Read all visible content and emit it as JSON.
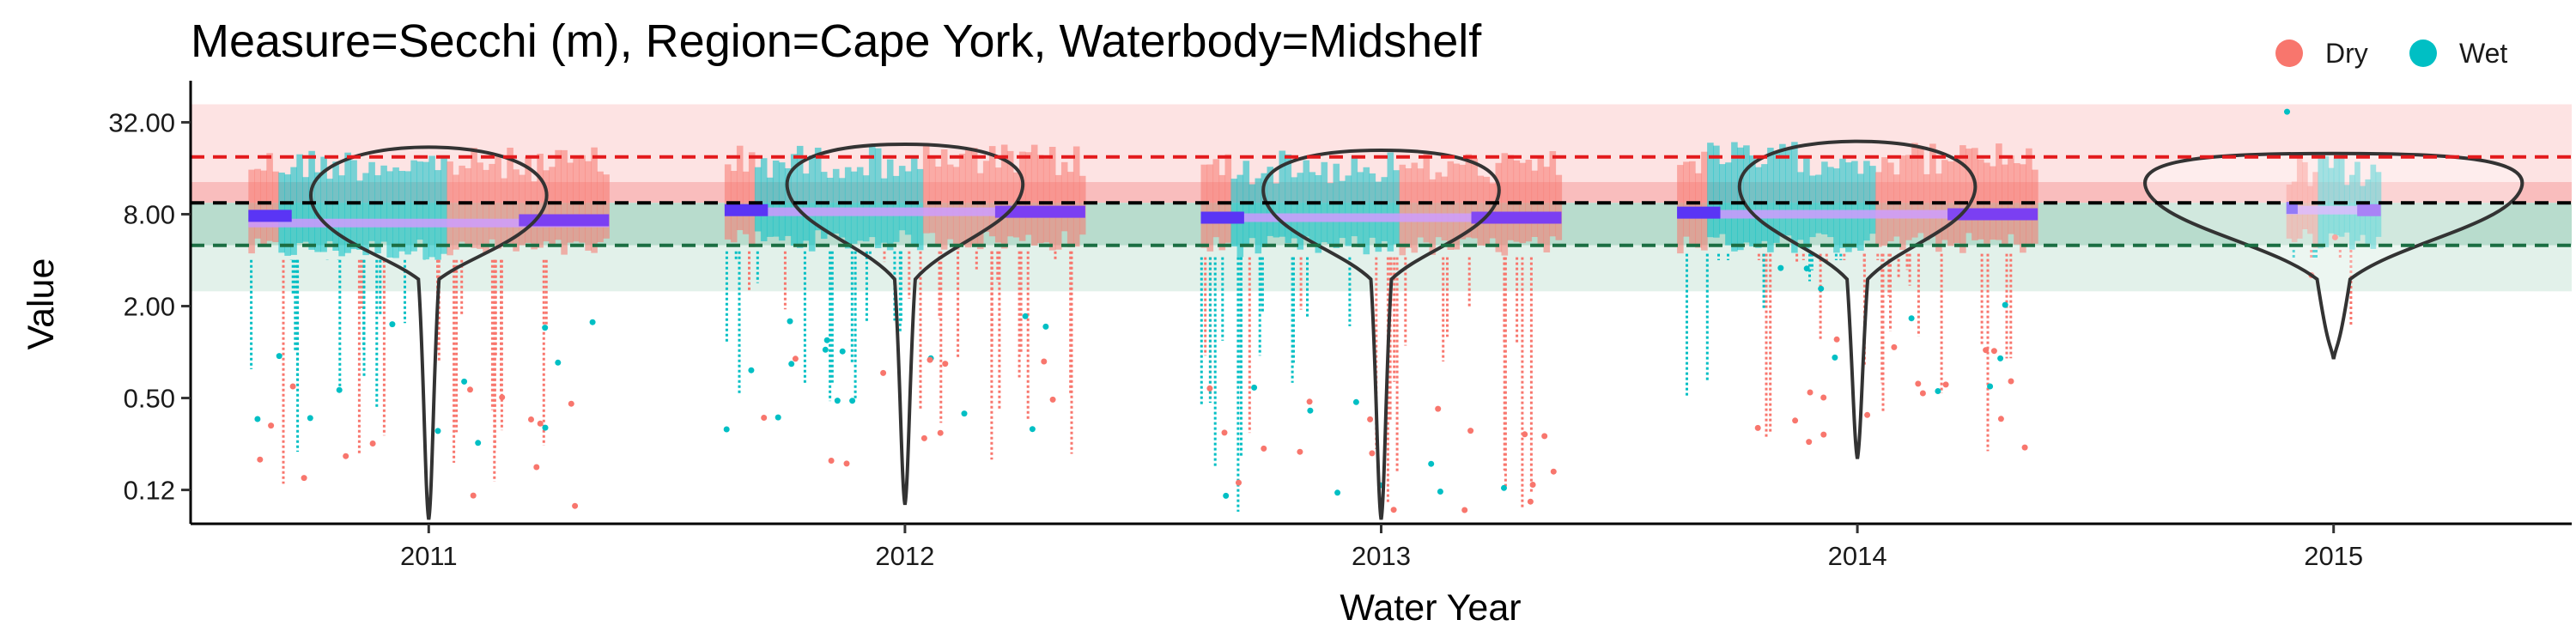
{
  "chart_data": {
    "type": "violin-scatter",
    "title": "Measure=Secchi (m), Region=Cape York, Waterbody=Midshelf",
    "xlabel": "Water Year",
    "ylabel": "Value",
    "y_scale": "log2",
    "ylim": [
      0.075,
      50
    ],
    "y_ticks": [
      32,
      8,
      2,
      0.5,
      0.125
    ],
    "y_tick_labels": [
      "32.00",
      "8.00",
      "2.00",
      "0.50",
      "0.12"
    ],
    "categories": [
      "2011",
      "2012",
      "2013",
      "2014",
      "2015"
    ],
    "grid": false,
    "legend": {
      "position": "top-right",
      "entries": [
        {
          "label": "Dry",
          "color": "#F8766D"
        },
        {
          "label": "Wet",
          "color": "#00BFC4"
        }
      ]
    },
    "guideline_bands": [
      {
        "from": 13,
        "to": 42,
        "color": "#fde3e3"
      },
      {
        "from": 9.5,
        "to": 13,
        "color": "#f9bdbd"
      },
      {
        "from": 5,
        "to": 9.5,
        "color": "#b8dccd"
      },
      {
        "from": 2.5,
        "to": 5,
        "color": "#e2f1ea"
      }
    ],
    "reference_lines": [
      {
        "value": 19,
        "color": "#e31a1c"
      },
      {
        "value": 9.5,
        "color": "#000000"
      },
      {
        "value": 5,
        "color": "#1b6e43"
      }
    ],
    "years": [
      {
        "year": "2011",
        "median": 7,
        "dry_median": 7.3,
        "wet_median": 7.8,
        "dry_min": 0.09,
        "wet_min": 0.2,
        "max": 22,
        "violin_min": 0.08,
        "violin_max": 22
      },
      {
        "year": "2012",
        "median": 8.3,
        "dry_median": 8.3,
        "wet_median": 8.5,
        "dry_min": 0.14,
        "wet_min": 0.3,
        "max": 23,
        "violin_min": 0.1,
        "violin_max": 23
      },
      {
        "year": "2013",
        "median": 7.6,
        "dry_median": 7.6,
        "wet_median": 7.6,
        "dry_min": 0.09,
        "wet_min": 0.08,
        "max": 21,
        "violin_min": 0.08,
        "violin_max": 21
      },
      {
        "year": "2014",
        "median": 8,
        "dry_median": 8,
        "wet_median": 8.2,
        "dry_min": 0.2,
        "wet_min": 0.5,
        "max": 24,
        "violin_min": 0.2,
        "violin_max": 24
      },
      {
        "year": "2015",
        "median": 8.5,
        "dry_median": 8.5,
        "wet_median": 8.8,
        "dry_min": 0.9,
        "wet_min": 5,
        "max": 20,
        "violin_min": 0.9,
        "violin_max": 20
      }
    ]
  }
}
